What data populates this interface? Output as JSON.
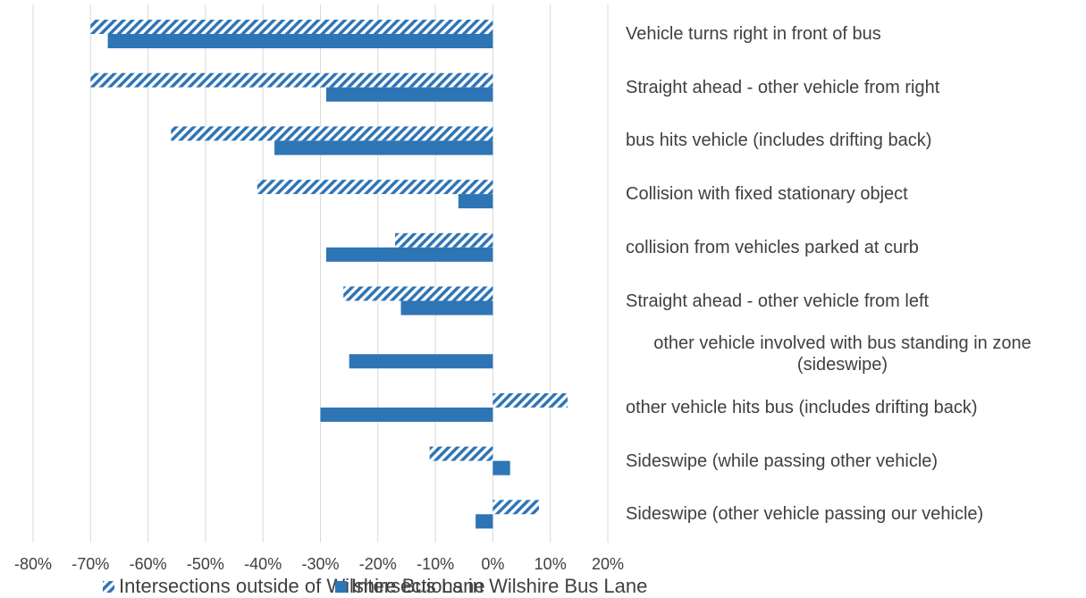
{
  "chart_data": {
    "type": "hbar",
    "categories": [
      "Vehicle turns right in front of bus",
      "Straight ahead - other vehicle from right",
      "bus hits vehicle (includes drifting back)",
      "Collision with fixed stationary object",
      "collision from vehicles parked at curb",
      "Straight ahead - other vehicle from left",
      "other vehicle involved with bus standing in zone (sideswipe)",
      "other vehicle hits bus (includes drifting back)",
      "Sideswipe (while passing other vehicle)",
      "Sideswipe (other vehicle passing our vehicle)"
    ],
    "series": [
      {
        "name": "Intersections outside of Wilshire Bus Lane",
        "color": "#2e75b6",
        "pattern": "hatch",
        "values": [
          -70,
          -70,
          -56,
          -41,
          -17,
          -26,
          0,
          13,
          -11,
          8
        ]
      },
      {
        "name": "Intersections in Wilshire Bus Lane",
        "color": "#2e75b6",
        "pattern": "solid",
        "values": [
          -67,
          -29,
          -38,
          -6,
          -29,
          -16,
          -25,
          -30,
          3,
          -3
        ]
      }
    ],
    "xlim": [
      -80,
      20
    ],
    "xticks": [
      {
        "value": -80,
        "label": "-80%"
      },
      {
        "value": -70,
        "label": "-70%"
      },
      {
        "value": -60,
        "label": "-60%"
      },
      {
        "value": -50,
        "label": "-50%"
      },
      {
        "value": -40,
        "label": "-40%"
      },
      {
        "value": -30,
        "label": "-30%"
      },
      {
        "value": -20,
        "label": "-20%"
      },
      {
        "value": -10,
        "label": "-10%"
      },
      {
        "value": 0,
        "label": "0%"
      },
      {
        "value": 10,
        "label": "10%"
      },
      {
        "value": 20,
        "label": "20%"
      }
    ],
    "grid": true,
    "legend": "bottom"
  }
}
